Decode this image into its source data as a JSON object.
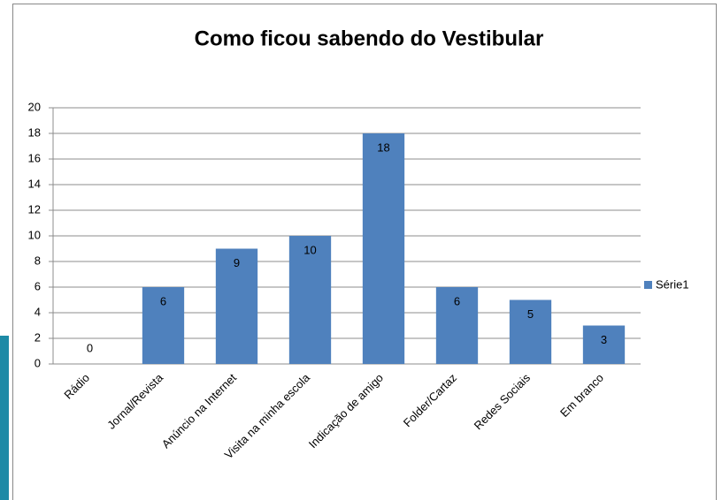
{
  "chart_data": {
    "type": "bar",
    "title": "Como ficou sabendo do Vestibular",
    "categories": [
      "Rádio",
      "Jornal/Revista",
      "Anúncio na Internet",
      "Visita na minha escola",
      "Indicação de amigo",
      "Folder/Cartaz",
      "Redes Sociais",
      "Em branco"
    ],
    "series": [
      {
        "name": "Série1",
        "color": "#4f81bd",
        "values": [
          0,
          6,
          9,
          10,
          18,
          6,
          5,
          3
        ]
      }
    ],
    "ylim": [
      0,
      20
    ],
    "yticks": [
      0,
      2,
      4,
      6,
      8,
      10,
      12,
      14,
      16,
      18,
      20
    ],
    "grid": true,
    "legend": "right"
  }
}
